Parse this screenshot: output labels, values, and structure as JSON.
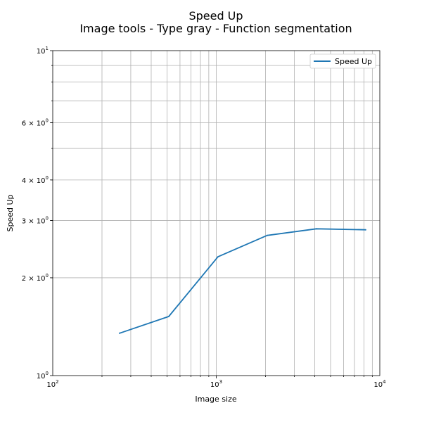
{
  "chart_data": {
    "type": "line",
    "title": "Speed Up",
    "subtitle": "Image tools - Type gray - Function segmentation",
    "xlabel": "Image size",
    "ylabel": "Speed Up",
    "xscale": "log",
    "yscale": "log",
    "xlim": [
      100,
      10000
    ],
    "ylim": [
      1,
      10
    ],
    "grid": "both (major and minor)",
    "legend_position": "top-right",
    "x_major_ticks": [
      {
        "value": 100,
        "base": "10",
        "exp": "2"
      },
      {
        "value": 1000,
        "base": "10",
        "exp": "3"
      },
      {
        "value": 10000,
        "base": "10",
        "exp": "4"
      }
    ],
    "y_ticks": [
      {
        "value": 1,
        "base": "10",
        "exp": "0"
      },
      {
        "value": 2,
        "base": "2 × 10",
        "exp": "0"
      },
      {
        "value": 3,
        "base": "3 × 10",
        "exp": "0"
      },
      {
        "value": 4,
        "base": "4 × 10",
        "exp": "0"
      },
      {
        "value": 6,
        "base": "6 × 10",
        "exp": "0"
      },
      {
        "value": 10,
        "base": "10",
        "exp": "1"
      }
    ],
    "series": [
      {
        "name": "Speed Up",
        "color": "#1f77b4",
        "x": [
          256,
          512,
          1024,
          2048,
          4096,
          8192
        ],
        "y": [
          1.35,
          1.52,
          2.32,
          2.7,
          2.83,
          2.81
        ]
      }
    ]
  }
}
